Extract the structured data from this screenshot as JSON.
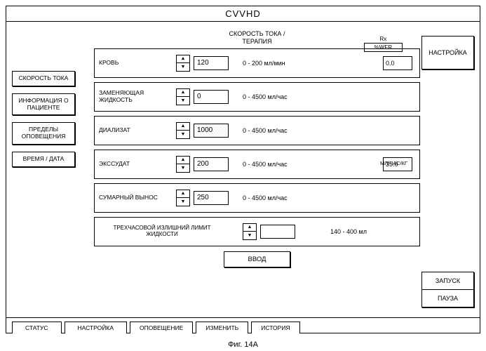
{
  "title": "CVVHD",
  "figure_label": "Фиг. 14A",
  "left_tabs": [
    {
      "label": "СКОРОСТЬ ТОКА",
      "active": true
    },
    {
      "label": "ИНФОРМАЦИЯ О ПАЦИЕНТЕ",
      "active": false
    },
    {
      "label": "ПРЕДЕЛЫ ОПОВЕЩЕНИЯ",
      "active": false
    },
    {
      "label": "ВРЕМЯ / ДАТА",
      "active": false
    }
  ],
  "right_top": {
    "label": "НАСТРОЙКА"
  },
  "right_bottom": {
    "top": "ЗАПУСК",
    "bottom": "ПАУЗА"
  },
  "center_title_line1": "СКОРОСТЬ ТОКА /",
  "center_title_line2": "ТЕРАПИЯ",
  "rx_label": "Rx",
  "wfr_label": "%WFR",
  "kg_label": "МЛ/ЧАС/КГ",
  "rows": [
    {
      "label": "КРОВЬ",
      "value": "120",
      "range": "0 - 200  мл/мин",
      "extra": "0.0",
      "hatched": false
    },
    {
      "label": "ЗАМЕНЯЮЩАЯ ЖИДКОСТЬ",
      "value": "0",
      "range": "0 - 4500  мл/час",
      "extra": null,
      "hatched": false
    },
    {
      "label": "ДИАЛИЗАТ",
      "value": "1000",
      "range": "0 - 4500  мл/час",
      "extra": null,
      "hatched": true
    },
    {
      "label": "ЭКССУДАТ",
      "value": "200",
      "range": "0 - 4500  мл/час",
      "extra": "35.0",
      "hatched": false
    },
    {
      "label": "СУМАРНЫЙ ВЫНОС",
      "value": "250",
      "range": "0 - 4500  мл/час",
      "extra": null,
      "hatched": false
    }
  ],
  "limit_row": {
    "label": "ТРЕХЧАСОВОЙ ИЗЛИШНИЙ ЛИМИТ ЖИДКОСТИ",
    "value": "",
    "range": "140 - 400  мл"
  },
  "enter_label": "ВВОД",
  "bottom_tabs": [
    "СТАТУС",
    "НАСТРОЙКА",
    "ОПОВЕЩЕНИЕ",
    "ИЗМЕНИТЬ",
    "ИСТОРИЯ"
  ]
}
